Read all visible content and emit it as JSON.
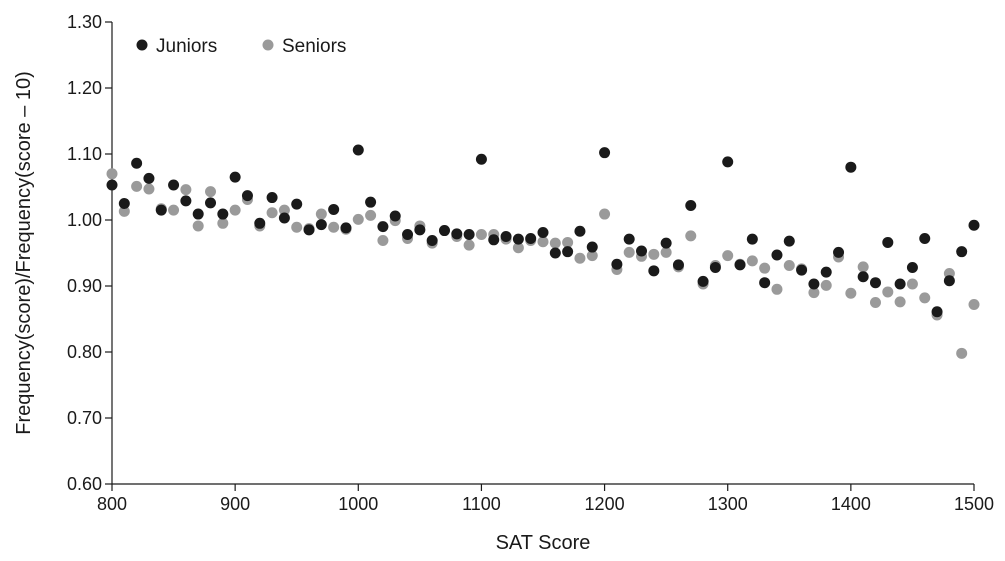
{
  "chart_data": {
    "type": "scatter",
    "title": "",
    "xlabel": "SAT Score",
    "ylabel": "Frequency(score)/Frequency(score – 10)",
    "xlim": [
      800,
      1500
    ],
    "ylim": [
      0.6,
      1.3
    ],
    "xticks": [
      "800",
      "900",
      "1000",
      "1100",
      "1200",
      "1300",
      "1400",
      "1500"
    ],
    "yticks": [
      "0.60",
      "0.70",
      "0.80",
      "0.90",
      "1.00",
      "1.10",
      "1.20",
      "1.30"
    ],
    "grid": false,
    "legend_position": "top-left",
    "x": [
      800,
      810,
      820,
      830,
      840,
      850,
      860,
      870,
      880,
      890,
      900,
      910,
      920,
      930,
      940,
      950,
      960,
      970,
      980,
      990,
      1000,
      1010,
      1020,
      1030,
      1040,
      1050,
      1060,
      1070,
      1080,
      1090,
      1100,
      1110,
      1120,
      1130,
      1140,
      1150,
      1160,
      1170,
      1180,
      1190,
      1200,
      1210,
      1220,
      1230,
      1240,
      1250,
      1260,
      1270,
      1280,
      1290,
      1300,
      1310,
      1320,
      1330,
      1340,
      1350,
      1360,
      1370,
      1380,
      1390,
      1400,
      1410,
      1420,
      1430,
      1440,
      1450,
      1460,
      1470,
      1480,
      1490,
      1500
    ],
    "series": [
      {
        "name": "Juniors",
        "color": "#1a1a1a",
        "values": [
          1.053,
          1.025,
          1.086,
          1.063,
          1.015,
          1.053,
          1.029,
          1.009,
          1.026,
          1.009,
          1.065,
          1.037,
          0.995,
          1.034,
          1.003,
          1.024,
          0.985,
          0.993,
          1.016,
          0.988,
          1.106,
          1.027,
          0.99,
          1.006,
          0.978,
          0.985,
          0.969,
          0.984,
          0.979,
          0.978,
          1.092,
          0.97,
          0.975,
          0.971,
          0.972,
          0.981,
          0.95,
          0.952,
          0.983,
          0.959,
          1.102,
          0.933,
          0.971,
          0.953,
          0.923,
          0.965,
          0.932,
          1.022,
          0.907,
          0.928,
          1.088,
          0.932,
          0.971,
          0.905,
          0.947,
          0.968,
          0.924,
          0.903,
          0.921,
          0.951,
          1.08,
          0.914,
          0.905,
          0.966,
          0.903,
          0.928,
          0.972,
          0.861,
          0.908,
          0.952,
          0.992
        ]
      },
      {
        "name": "Seniors",
        "color": "#9a9a9a",
        "values": [
          1.07,
          1.013,
          1.051,
          1.047,
          1.017,
          1.015,
          1.046,
          0.991,
          1.043,
          0.995,
          1.015,
          1.031,
          0.991,
          1.011,
          1.015,
          0.989,
          0.987,
          1.009,
          0.989,
          0.986,
          1.001,
          1.007,
          0.969,
          0.999,
          0.972,
          0.991,
          0.965,
          0.984,
          0.975,
          0.962,
          0.978,
          0.978,
          0.971,
          0.958,
          0.969,
          0.967,
          0.965,
          0.966,
          0.942,
          0.946,
          1.009,
          0.925,
          0.951,
          0.945,
          0.948,
          0.951,
          0.929,
          0.976,
          0.903,
          0.931,
          0.946,
          0.933,
          0.938,
          0.927,
          0.895,
          0.931,
          0.926,
          0.89,
          0.901,
          0.944,
          0.889,
          0.929,
          0.875,
          0.891,
          0.876,
          0.903,
          0.882,
          0.856,
          0.919,
          0.798,
          0.872
        ]
      }
    ]
  }
}
